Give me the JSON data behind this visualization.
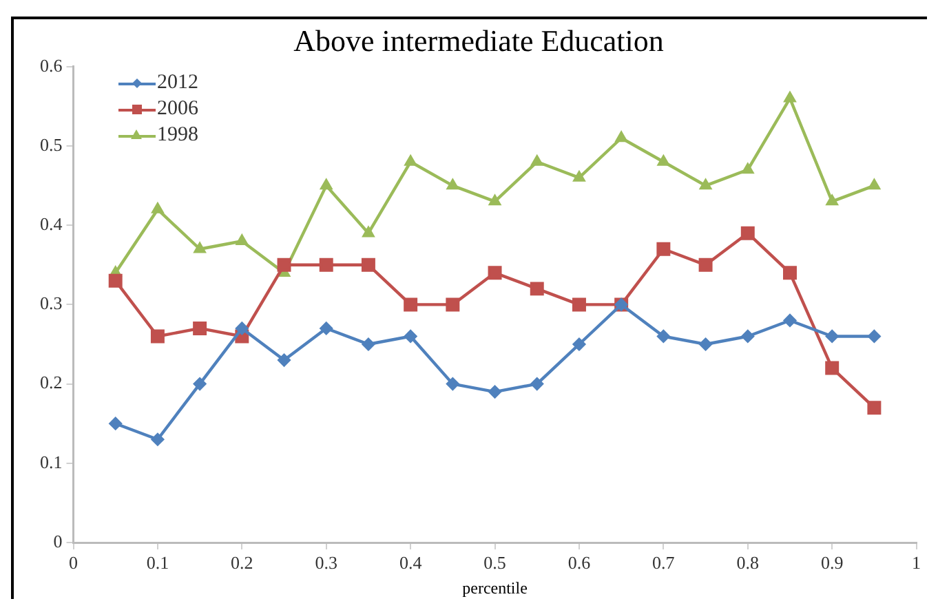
{
  "chart_data": {
    "type": "line",
    "title": "Above intermediate Education",
    "xlabel": "percentile",
    "x": [
      0.05,
      0.1,
      0.15,
      0.2,
      0.25,
      0.3,
      0.35,
      0.4,
      0.45,
      0.5,
      0.55,
      0.6,
      0.65,
      0.7,
      0.75,
      0.8,
      0.85,
      0.9,
      0.95
    ],
    "series": [
      {
        "name": "2012",
        "color": "#4f81bd",
        "marker": "diamond",
        "values": [
          0.15,
          0.13,
          0.2,
          0.27,
          0.23,
          0.27,
          0.25,
          0.26,
          0.2,
          0.19,
          0.2,
          0.25,
          0.3,
          0.26,
          0.25,
          0.26,
          0.28,
          0.26,
          0.26
        ]
      },
      {
        "name": "2006",
        "color": "#c0504d",
        "marker": "square",
        "values": [
          0.33,
          0.26,
          0.27,
          0.26,
          0.35,
          0.35,
          0.35,
          0.3,
          0.3,
          0.34,
          0.32,
          0.3,
          0.3,
          0.37,
          0.35,
          0.39,
          0.34,
          0.22,
          0.17
        ]
      },
      {
        "name": "1998",
        "color": "#9bbb59",
        "marker": "triangle",
        "values": [
          0.34,
          0.42,
          0.37,
          0.38,
          0.34,
          0.45,
          0.39,
          0.48,
          0.45,
          0.43,
          0.48,
          0.46,
          0.51,
          0.48,
          0.45,
          0.47,
          0.56,
          0.43,
          0.45
        ]
      }
    ],
    "xlim": [
      0,
      1
    ],
    "xticks": [
      0,
      0.1,
      0.2,
      0.3,
      0.4,
      0.5,
      0.6,
      0.7,
      0.8,
      0.9,
      1
    ],
    "ylim": [
      0,
      0.6
    ],
    "yticks": [
      0,
      0.1,
      0.2,
      0.3,
      0.4,
      0.5,
      0.6
    ],
    "grid": false,
    "legend": "top left",
    "line_style": "solid"
  }
}
